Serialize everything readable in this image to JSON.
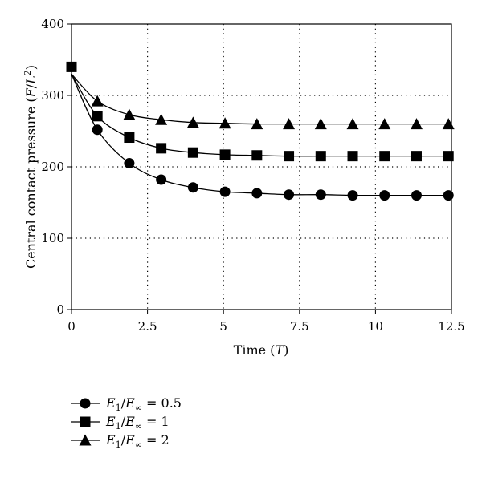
{
  "chart_data": {
    "type": "line",
    "xlabel": {
      "main": "Time (",
      "var": "T",
      "end": ")"
    },
    "ylabel": {
      "main": "Central contact pressure (",
      "var": "F",
      "slash": "/",
      "var2": "L",
      "sup": "2",
      "end": ")"
    },
    "xlim": [
      0,
      12.5
    ],
    "ylim": [
      0,
      400
    ],
    "xticks": [
      "0",
      "2.5",
      "5",
      "7.5",
      "10",
      "12.5"
    ],
    "yticks": [
      "0",
      "100",
      "200",
      "300",
      "400"
    ],
    "grid": "dotted",
    "legend_position": "bottom-left",
    "series": [
      {
        "name": "E1/E∞ = 0.5",
        "label": {
          "a": "E",
          "a_sub": "1",
          "slash": "/",
          "b": "E",
          "b_sub": "∞",
          "eq": " = 0.5"
        },
        "marker": "circle",
        "x": [
          0,
          0.85,
          1.9,
          2.95,
          4.0,
          5.05,
          6.1,
          7.15,
          8.2,
          9.25,
          10.3,
          11.35,
          12.4
        ],
        "y": [
          340,
          252,
          205,
          182,
          171,
          165,
          163,
          161,
          161,
          160,
          160,
          160,
          160
        ]
      },
      {
        "name": "E1/E∞ = 1",
        "label": {
          "a": "E",
          "a_sub": "1",
          "slash": "/",
          "b": "E",
          "b_sub": "∞",
          "eq": " = 1"
        },
        "marker": "square",
        "x": [
          0,
          0.85,
          1.9,
          2.95,
          4.0,
          5.05,
          6.1,
          7.15,
          8.2,
          9.25,
          10.3,
          11.35,
          12.4
        ],
        "y": [
          340,
          271,
          241,
          226,
          220,
          217,
          216,
          215,
          215,
          215,
          215,
          215,
          215
        ]
      },
      {
        "name": "E1/E∞ = 2",
        "label": {
          "a": "E",
          "a_sub": "1",
          "slash": "/",
          "b": "E",
          "b_sub": "∞",
          "eq": " = 2"
        },
        "marker": "triangle",
        "x": [
          0,
          0.85,
          1.9,
          2.95,
          4.0,
          5.05,
          6.1,
          7.15,
          8.2,
          9.25,
          10.3,
          11.35,
          12.4
        ],
        "y": [
          340,
          292,
          273,
          266,
          262,
          261,
          260,
          260,
          260,
          260,
          260,
          260,
          260
        ]
      }
    ]
  }
}
